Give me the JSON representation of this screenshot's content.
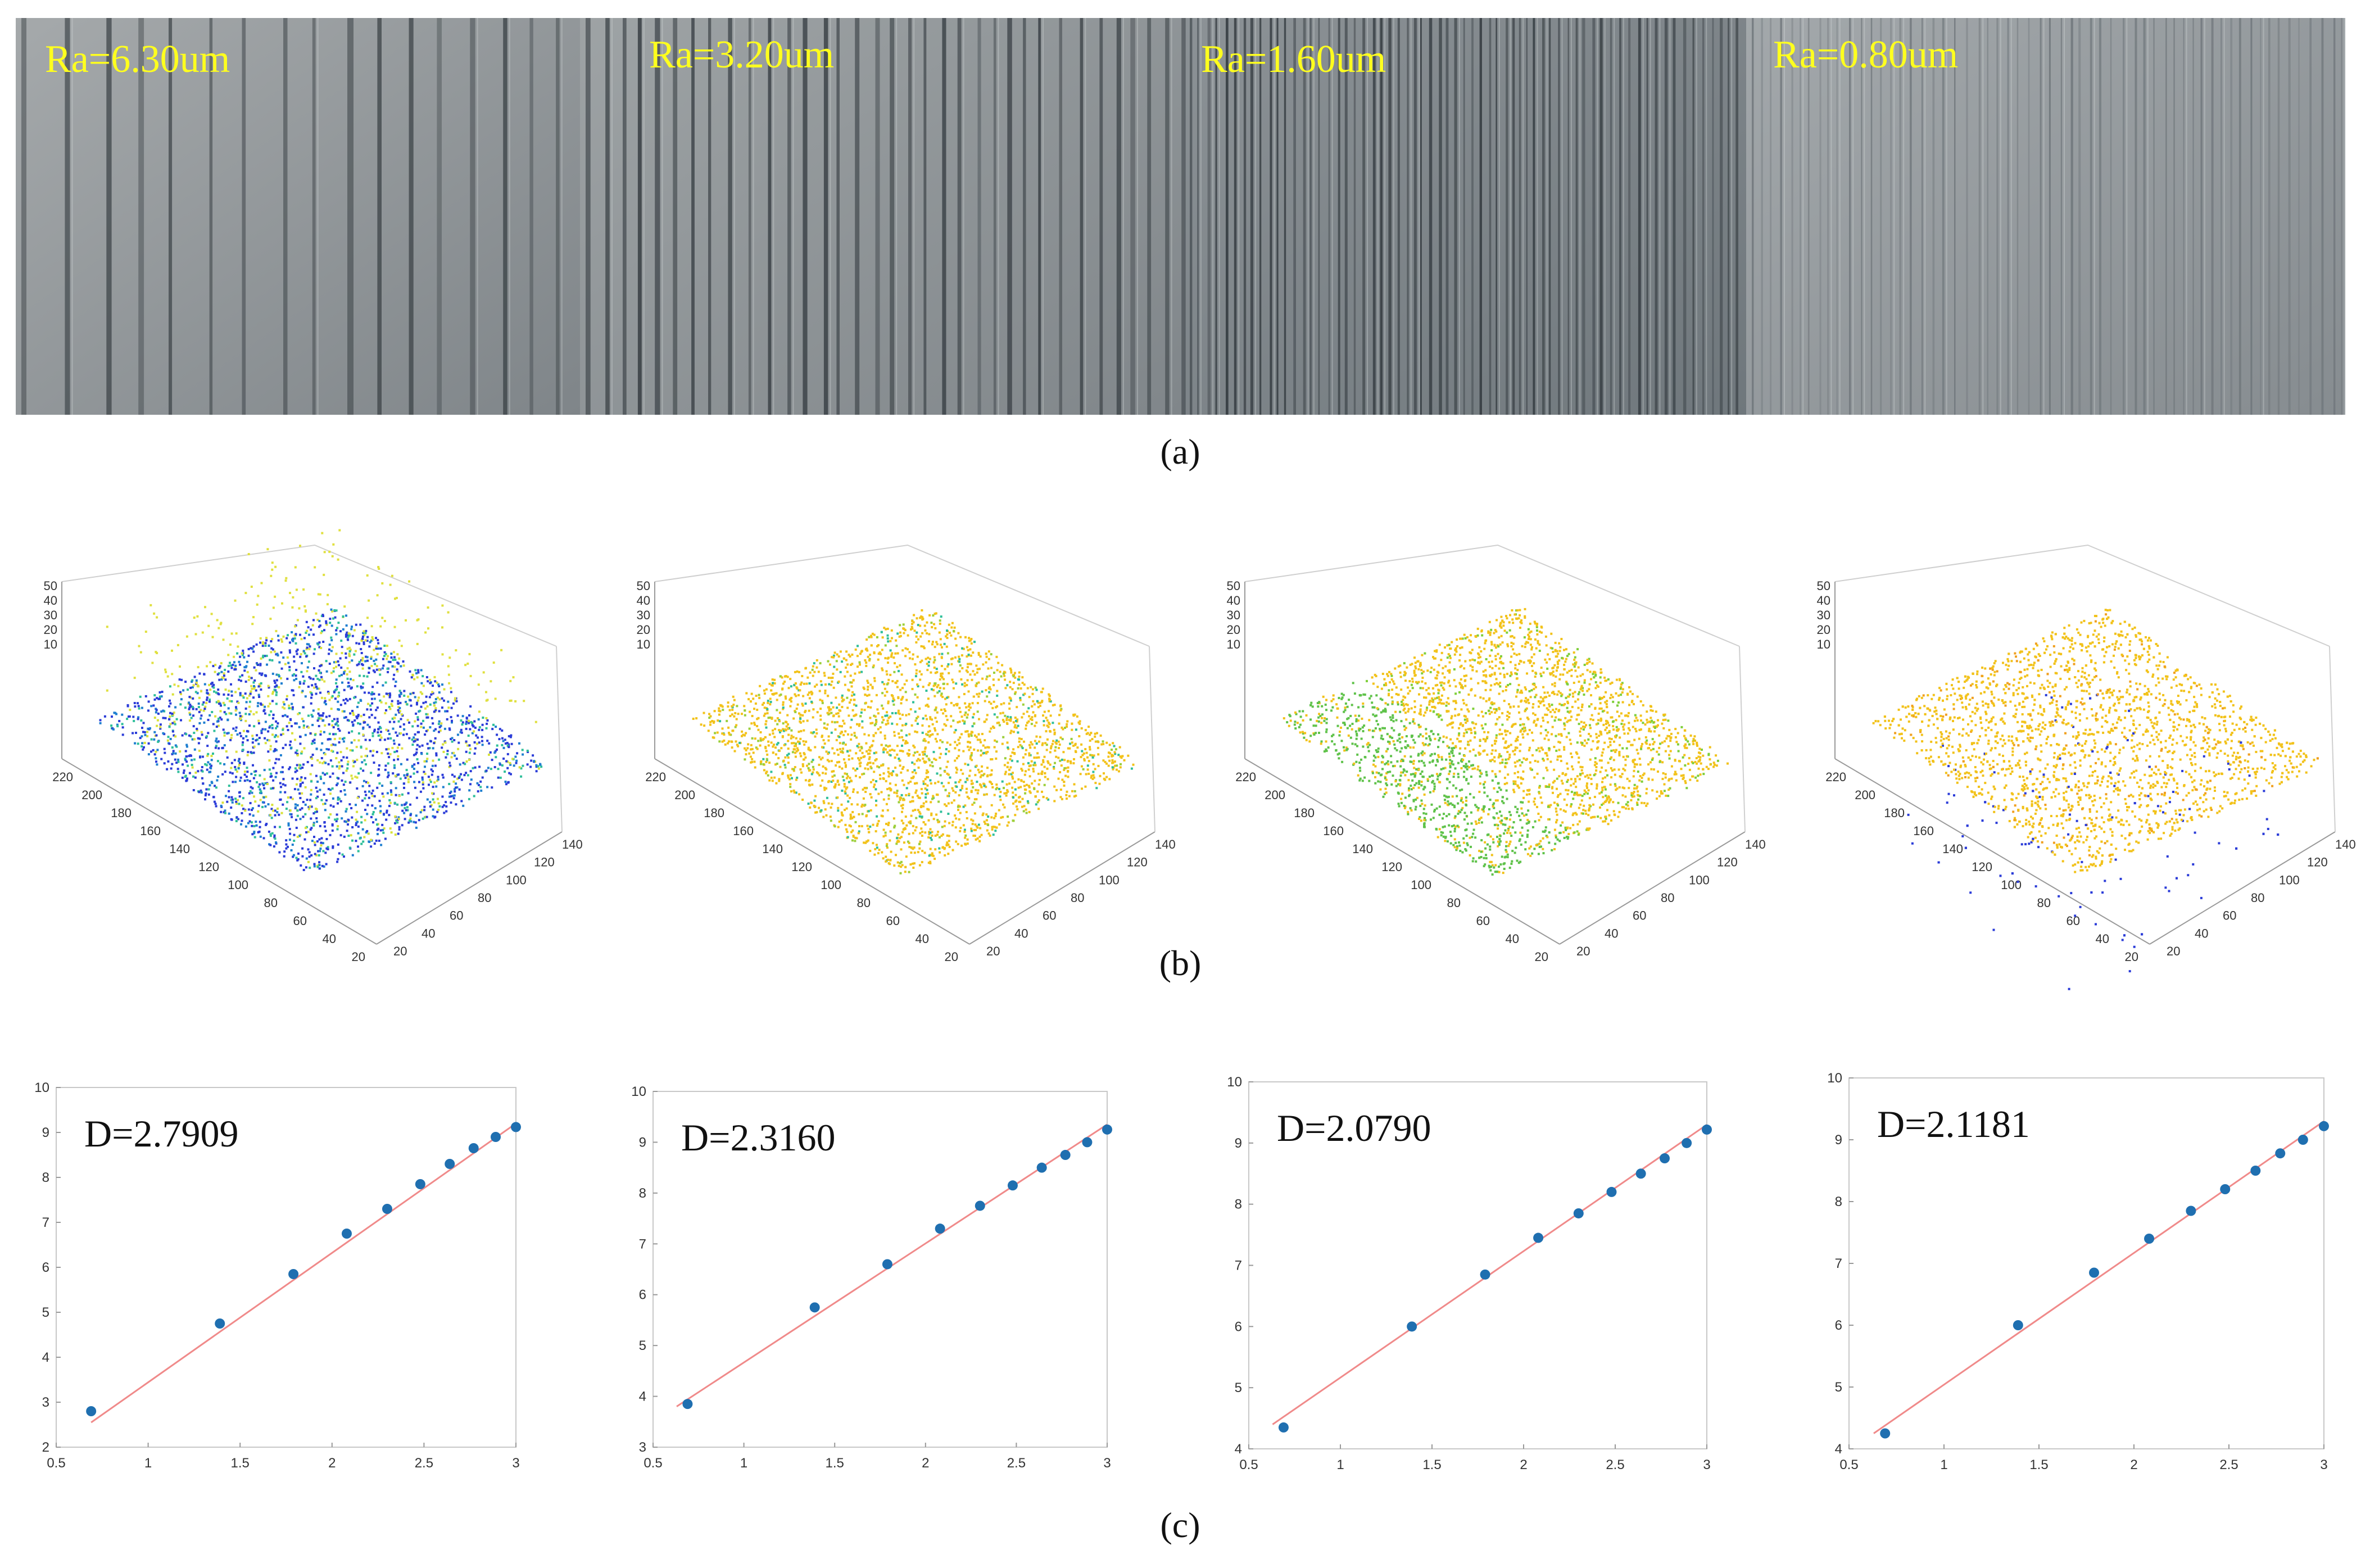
{
  "panel_a": {
    "caption": "(a)",
    "samples": [
      {
        "label": "Ra=6.30um",
        "color": "#ffff1e"
      },
      {
        "label": "Ra=3.20um",
        "color": "#ffff1e"
      },
      {
        "label": "Ra=1.60um",
        "color": "#ffff1e"
      },
      {
        "label": "Ra=0.80um",
        "color": "#ffff1e"
      }
    ]
  },
  "panel_b": {
    "caption": "(b)",
    "z_ticks": [
      "50",
      "40",
      "30",
      "20",
      "10"
    ],
    "y_ticks": [
      "220",
      "200",
      "180",
      "160",
      "140",
      "120",
      "100",
      "80",
      "60",
      "40",
      "20"
    ],
    "x_ticks": [
      "20",
      "40",
      "60",
      "80",
      "100",
      "120",
      "140"
    ],
    "colors": {
      "low": "#2b3cd8",
      "mid": "#2fbf9a",
      "high": "#f2c21a"
    }
  },
  "panel_c": {
    "caption": "(c)",
    "line_color": "#f08a8a",
    "point_color": "#1f6fb0"
  },
  "chart_data": [
    {
      "type": "scatter",
      "title": "D=2.7909",
      "xlim": [
        0.5,
        3
      ],
      "ylim": [
        2,
        10
      ],
      "xticks": [
        0.5,
        1,
        1.5,
        2,
        2.5,
        3
      ],
      "yticks": [
        2,
        3,
        4,
        5,
        6,
        7,
        8,
        9,
        10
      ],
      "x": [
        0.69,
        1.39,
        1.79,
        2.08,
        2.3,
        2.48,
        2.64,
        2.77,
        2.89,
        3.0
      ],
      "y": [
        2.8,
        4.75,
        5.85,
        6.75,
        7.3,
        7.85,
        8.3,
        8.65,
        8.9,
        9.12
      ],
      "fit": {
        "x": [
          0.69,
          3.0
        ],
        "y": [
          2.55,
          9.2
        ]
      }
    },
    {
      "type": "scatter",
      "title": "D=2.3160",
      "xlim": [
        0.5,
        3
      ],
      "ylim": [
        3,
        10
      ],
      "xticks": [
        0.5,
        1,
        1.5,
        2,
        2.5,
        3
      ],
      "yticks": [
        3,
        4,
        5,
        6,
        7,
        8,
        9,
        10
      ],
      "x": [
        0.69,
        1.39,
        1.79,
        2.08,
        2.3,
        2.48,
        2.64,
        2.77,
        2.89,
        3.0
      ],
      "y": [
        3.85,
        5.75,
        6.6,
        7.3,
        7.75,
        8.15,
        8.5,
        8.75,
        9.0,
        9.25
      ],
      "fit": {
        "x": [
          0.63,
          3.0
        ],
        "y": [
          3.8,
          9.35
        ]
      }
    },
    {
      "type": "scatter",
      "title": "D=2.0790",
      "xlim": [
        0.5,
        3
      ],
      "ylim": [
        4,
        10
      ],
      "xticks": [
        0.5,
        1,
        1.5,
        2,
        2.5,
        3
      ],
      "yticks": [
        4,
        5,
        6,
        7,
        8,
        9,
        10
      ],
      "x": [
        0.69,
        1.39,
        1.79,
        2.08,
        2.3,
        2.48,
        2.64,
        2.77,
        2.89,
        3.0
      ],
      "y": [
        4.35,
        6.0,
        6.85,
        7.45,
        7.85,
        8.2,
        8.5,
        8.75,
        9.0,
        9.22
      ],
      "fit": {
        "x": [
          0.63,
          3.0
        ],
        "y": [
          4.4,
          9.3
        ]
      }
    },
    {
      "type": "scatter",
      "title": "D=2.1181",
      "xlim": [
        0.5,
        3
      ],
      "ylim": [
        4,
        10
      ],
      "xticks": [
        0.5,
        1,
        1.5,
        2,
        2.5,
        3
      ],
      "yticks": [
        4,
        5,
        6,
        7,
        8,
        9,
        10
      ],
      "x": [
        0.69,
        1.39,
        1.79,
        2.08,
        2.3,
        2.48,
        2.64,
        2.77,
        2.89,
        3.0
      ],
      "y": [
        4.25,
        6.0,
        6.85,
        7.4,
        7.85,
        8.2,
        8.5,
        8.78,
        9.0,
        9.22
      ],
      "fit": {
        "x": [
          0.63,
          3.0
        ],
        "y": [
          4.25,
          9.3
        ]
      }
    }
  ]
}
